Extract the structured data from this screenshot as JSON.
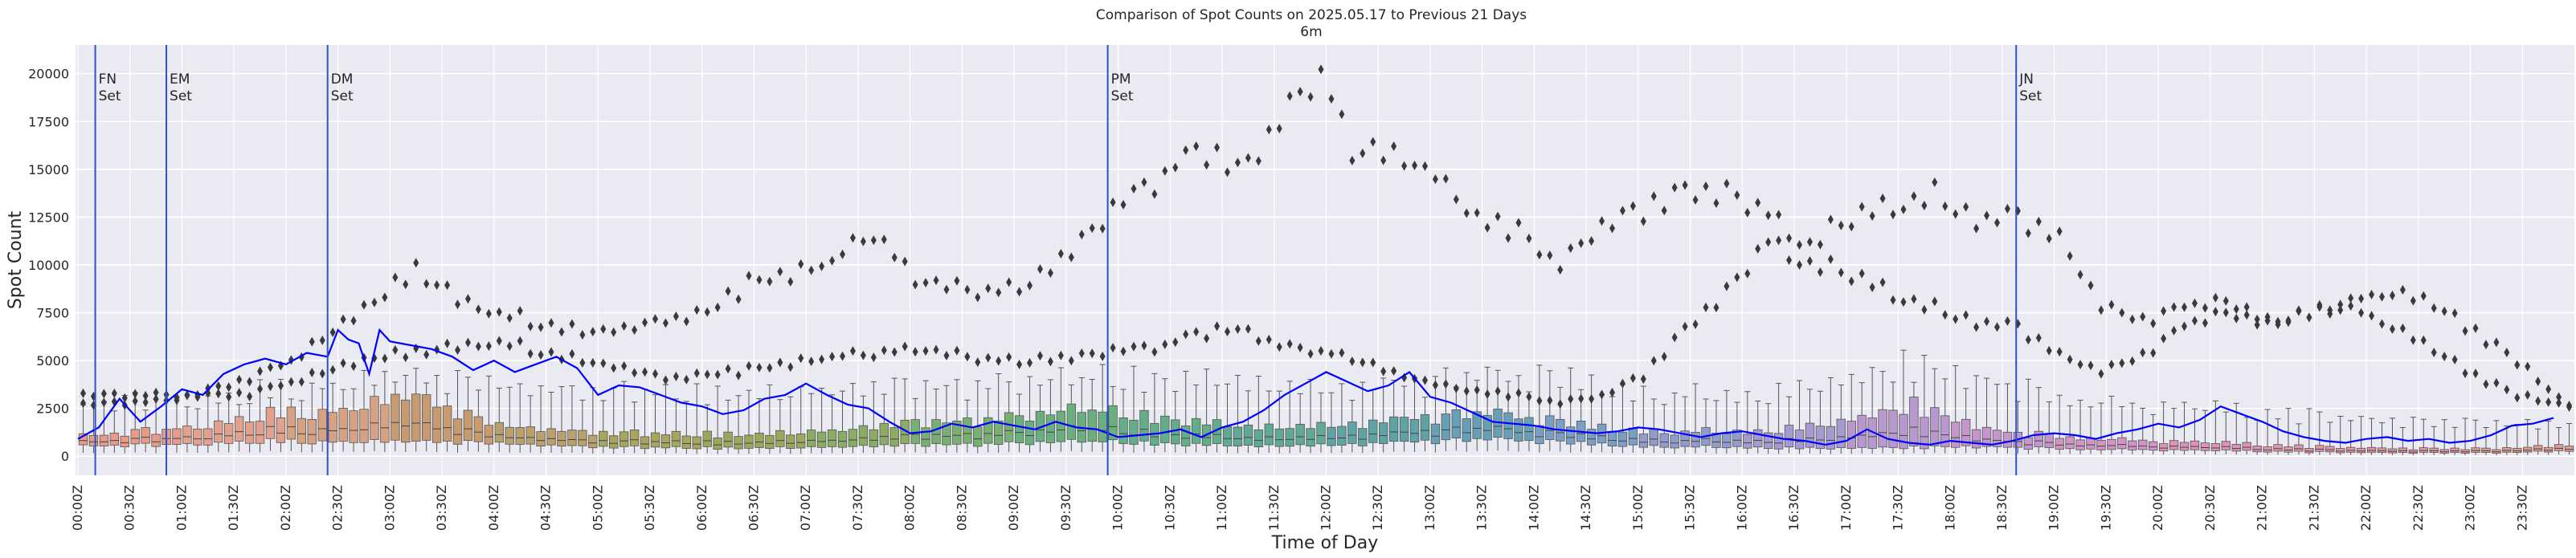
{
  "chart_data": {
    "type": "box",
    "title": "Comparison of Spot Counts on 2025.05.17 to Previous 21 Days",
    "subtitle": "6m",
    "xlabel": "Time of Day",
    "ylabel": "Spot Count",
    "ylim": [
      -1000,
      21500
    ],
    "y_ticks": [
      0,
      2500,
      5000,
      7500,
      10000,
      12500,
      15000,
      17500,
      20000
    ],
    "grid": true,
    "background": "#eaeaf2",
    "line_color": "#0000ff",
    "vline_color": "#3050c8",
    "x_tick_labels": [
      "00:00Z",
      "00:30Z",
      "01:00Z",
      "01:30Z",
      "02:00Z",
      "02:30Z",
      "03:00Z",
      "03:30Z",
      "04:00Z",
      "04:30Z",
      "05:00Z",
      "05:30Z",
      "06:00Z",
      "06:30Z",
      "07:00Z",
      "07:30Z",
      "08:00Z",
      "08:30Z",
      "09:00Z",
      "09:30Z",
      "10:00Z",
      "10:30Z",
      "11:00Z",
      "11:30Z",
      "12:00Z",
      "12:30Z",
      "13:00Z",
      "13:30Z",
      "14:00Z",
      "14:30Z",
      "15:00Z",
      "15:30Z",
      "16:00Z",
      "16:30Z",
      "17:00Z",
      "17:30Z",
      "18:00Z",
      "18:30Z",
      "19:00Z",
      "19:30Z",
      "20:00Z",
      "20:30Z",
      "21:00Z",
      "21:30Z",
      "22:00Z",
      "22:30Z",
      "23:00Z",
      "23:30Z"
    ],
    "vlines": [
      {
        "label": "FN\nSet",
        "minute": 10
      },
      {
        "label": "EM\nSet",
        "minute": 51
      },
      {
        "label": "DM\nSet",
        "minute": 144
      },
      {
        "label": "PM\nSet",
        "minute": 594
      },
      {
        "label": "JN\nSet",
        "minute": 1118
      }
    ],
    "box_palette": [
      "#e89a8a",
      "#e3a08c",
      "#d7a283",
      "#c79a70",
      "#b9a06c",
      "#a8a65e",
      "#9ba85c",
      "#8aac64",
      "#76b072",
      "#69b07e",
      "#62ae88",
      "#5fa996",
      "#60a3a6",
      "#67a0b6",
      "#7a9ec4",
      "#919ccd",
      "#a69ad0",
      "#b898cf",
      "#c596cb",
      "#d294c4",
      "#de92b9",
      "#e594ac",
      "#e5979e",
      "#e59a90"
    ],
    "box_medians": [
      [
        0,
        700
      ],
      [
        48,
        900
      ],
      [
        96,
        1300
      ],
      [
        144,
        1400
      ],
      [
        192,
        1700
      ],
      [
        240,
        1000
      ],
      [
        288,
        800
      ],
      [
        336,
        700
      ],
      [
        384,
        700
      ],
      [
        432,
        800
      ],
      [
        480,
        1000
      ],
      [
        528,
        1100
      ],
      [
        576,
        1400
      ],
      [
        624,
        1200
      ],
      [
        672,
        900
      ],
      [
        720,
        1000
      ],
      [
        768,
        1200
      ],
      [
        816,
        1400
      ],
      [
        864,
        1000
      ],
      [
        912,
        800
      ],
      [
        960,
        800
      ],
      [
        1008,
        900
      ],
      [
        1056,
        1300
      ],
      [
        1104,
        800
      ],
      [
        1152,
        600
      ],
      [
        1200,
        500
      ],
      [
        1248,
        400
      ],
      [
        1296,
        300
      ],
      [
        1344,
        250
      ],
      [
        1392,
        250
      ],
      [
        1439,
        400
      ]
    ],
    "box_q_spread": [
      [
        0,
        0.55
      ],
      [
        144,
        0.9
      ],
      [
        192,
        1.1
      ],
      [
        240,
        0.7
      ],
      [
        576,
        0.9
      ],
      [
        864,
        0.7
      ],
      [
        960,
        0.8
      ],
      [
        1008,
        1.1
      ],
      [
        1056,
        1.3
      ],
      [
        1104,
        0.8
      ],
      [
        1200,
        0.7
      ],
      [
        1439,
        0.6
      ]
    ],
    "box_whisker_top": [
      [
        0,
        2600
      ],
      [
        96,
        3300
      ],
      [
        144,
        3800
      ],
      [
        192,
        4200
      ],
      [
        240,
        3600
      ],
      [
        336,
        3200
      ],
      [
        432,
        3400
      ],
      [
        528,
        3600
      ],
      [
        576,
        4000
      ],
      [
        624,
        4200
      ],
      [
        672,
        3800
      ],
      [
        720,
        3600
      ],
      [
        768,
        3700
      ],
      [
        816,
        4200
      ],
      [
        864,
        3800
      ],
      [
        912,
        3200
      ],
      [
        960,
        3300
      ],
      [
        1008,
        3800
      ],
      [
        1056,
        4800
      ],
      [
        1104,
        3800
      ],
      [
        1152,
        2900
      ],
      [
        1248,
        2300
      ],
      [
        1344,
        1700
      ],
      [
        1439,
        1600
      ]
    ],
    "outliers_hi": [
      [
        0,
        2700
      ],
      [
        48,
        2900
      ],
      [
        96,
        4000
      ],
      [
        120,
        5000
      ],
      [
        144,
        6500
      ],
      [
        192,
        9800
      ],
      [
        216,
        8200
      ],
      [
        240,
        7500
      ],
      [
        264,
        7000
      ],
      [
        288,
        6500
      ],
      [
        312,
        6500
      ],
      [
        336,
        7000
      ],
      [
        360,
        7500
      ],
      [
        384,
        9000
      ],
      [
        408,
        9500
      ],
      [
        432,
        10200
      ],
      [
        456,
        11800
      ],
      [
        480,
        9200
      ],
      [
        504,
        8800
      ],
      [
        528,
        8600
      ],
      [
        552,
        9500
      ],
      [
        576,
        11200
      ],
      [
        600,
        13200
      ],
      [
        624,
        14800
      ],
      [
        648,
        16000
      ],
      [
        672,
        15000
      ],
      [
        696,
        18600
      ],
      [
        714,
        20200
      ],
      [
        732,
        16200
      ],
      [
        756,
        16000
      ],
      [
        780,
        14800
      ],
      [
        804,
        12500
      ],
      [
        828,
        11800
      ],
      [
        852,
        10000
      ],
      [
        876,
        12200
      ],
      [
        900,
        12800
      ],
      [
        924,
        13600
      ],
      [
        948,
        13800
      ],
      [
        972,
        12600
      ],
      [
        996,
        11200
      ],
      [
        1020,
        12600
      ],
      [
        1044,
        13000
      ],
      [
        1068,
        13800
      ],
      [
        1092,
        12000
      ],
      [
        1116,
        12600
      ],
      [
        1140,
        11200
      ],
      [
        1164,
        7800
      ],
      [
        1188,
        7000
      ],
      [
        1212,
        7800
      ],
      [
        1236,
        8000
      ],
      [
        1260,
        7200
      ],
      [
        1284,
        7600
      ],
      [
        1308,
        8200
      ],
      [
        1332,
        8600
      ],
      [
        1356,
        8000
      ],
      [
        1380,
        6500
      ],
      [
        1404,
        5000
      ],
      [
        1428,
        3000
      ],
      [
        1439,
        2600
      ]
    ],
    "outliers_lo": [
      [
        96,
        3200
      ],
      [
        168,
        5200
      ],
      [
        240,
        6000
      ],
      [
        288,
        5000
      ],
      [
        336,
        4000
      ],
      [
        384,
        4500
      ],
      [
        432,
        5200
      ],
      [
        480,
        5600
      ],
      [
        528,
        5000
      ],
      [
        576,
        5200
      ],
      [
        624,
        5800
      ],
      [
        660,
        6800
      ],
      [
        684,
        6000
      ],
      [
        708,
        5600
      ],
      [
        732,
        5200
      ],
      [
        756,
        4400
      ],
      [
        780,
        3800
      ],
      [
        804,
        3400
      ],
      [
        828,
        3200
      ],
      [
        852,
        2800
      ],
      [
        876,
        3200
      ],
      [
        900,
        4200
      ],
      [
        924,
        6500
      ],
      [
        948,
        8600
      ],
      [
        972,
        11200
      ],
      [
        996,
        10200
      ],
      [
        1020,
        9600
      ],
      [
        1044,
        8400
      ],
      [
        1068,
        7800
      ],
      [
        1092,
        6800
      ],
      [
        1116,
        6800
      ],
      [
        1140,
        5200
      ],
      [
        1164,
        4400
      ],
      [
        1188,
        5200
      ],
      [
        1212,
        6800
      ],
      [
        1236,
        7400
      ],
      [
        1260,
        7000
      ],
      [
        1284,
        7600
      ],
      [
        1308,
        7800
      ],
      [
        1332,
        6800
      ],
      [
        1356,
        5600
      ],
      [
        1380,
        4200
      ],
      [
        1404,
        3200
      ],
      [
        1428,
        2700
      ]
    ],
    "series": [
      {
        "minutes": [
          0,
          12,
          24,
          36,
          48,
          60,
          72,
          84,
          96,
          108,
          120,
          132,
          144,
          150,
          156,
          162,
          168,
          174,
          180,
          192,
          204,
          216,
          228,
          240,
          252,
          264,
          276,
          288,
          300,
          312,
          324,
          336,
          348,
          360,
          372,
          384,
          396,
          408,
          420,
          432,
          444,
          456,
          468,
          480,
          492,
          504,
          516,
          528,
          540,
          552,
          564,
          576,
          588,
          600,
          612,
          624,
          636,
          648,
          660,
          672,
          684,
          696,
          708,
          720,
          732,
          744,
          756,
          768,
          780,
          792,
          804,
          816,
          828,
          840,
          852,
          864,
          876,
          888,
          900,
          912,
          924,
          936,
          948,
          960,
          972,
          984,
          996,
          1008,
          1020,
          1032,
          1044,
          1056,
          1068,
          1080,
          1092,
          1104,
          1116,
          1128,
          1140,
          1152,
          1164,
          1176,
          1188,
          1200,
          1212,
          1224,
          1236,
          1248,
          1260,
          1272,
          1284,
          1296,
          1308,
          1320,
          1332,
          1344,
          1356,
          1368,
          1380,
          1392,
          1404,
          1416,
          1428
        ],
        "values": [
          900,
          1500,
          3000,
          1800,
          2600,
          3500,
          3200,
          4300,
          4800,
          5100,
          4800,
          5400,
          5200,
          6600,
          6100,
          5900,
          4300,
          6600,
          6000,
          5800,
          5600,
          5200,
          4500,
          5000,
          4400,
          4800,
          5200,
          4600,
          3200,
          3700,
          3600,
          3200,
          2800,
          2600,
          2200,
          2400,
          3000,
          3200,
          3800,
          3200,
          2700,
          2500,
          1800,
          1200,
          1300,
          1700,
          1500,
          1800,
          1600,
          1400,
          1800,
          1500,
          1400,
          1000,
          1100,
          1200,
          1400,
          1000,
          1500,
          1800,
          2400,
          3200,
          3800,
          4400,
          3900,
          3400,
          3700,
          4400,
          3100,
          2800,
          2300,
          1800,
          1700,
          1600,
          1400,
          1300,
          1200,
          1300,
          1500,
          1400,
          1200,
          1000,
          1200,
          1300,
          1100,
          900,
          800,
          600,
          800,
          1400,
          900,
          700,
          600,
          800,
          700,
          600,
          800,
          1100,
          1200,
          1100,
          900,
          1200,
          1400,
          1700,
          1500,
          1900,
          2600,
          2200,
          1800,
          1300,
          1000,
          800,
          700,
          900,
          1000,
          800,
          900,
          700,
          800,
          1100,
          1600,
          1700,
          2000,
          2200
        ]
      }
    ]
  }
}
